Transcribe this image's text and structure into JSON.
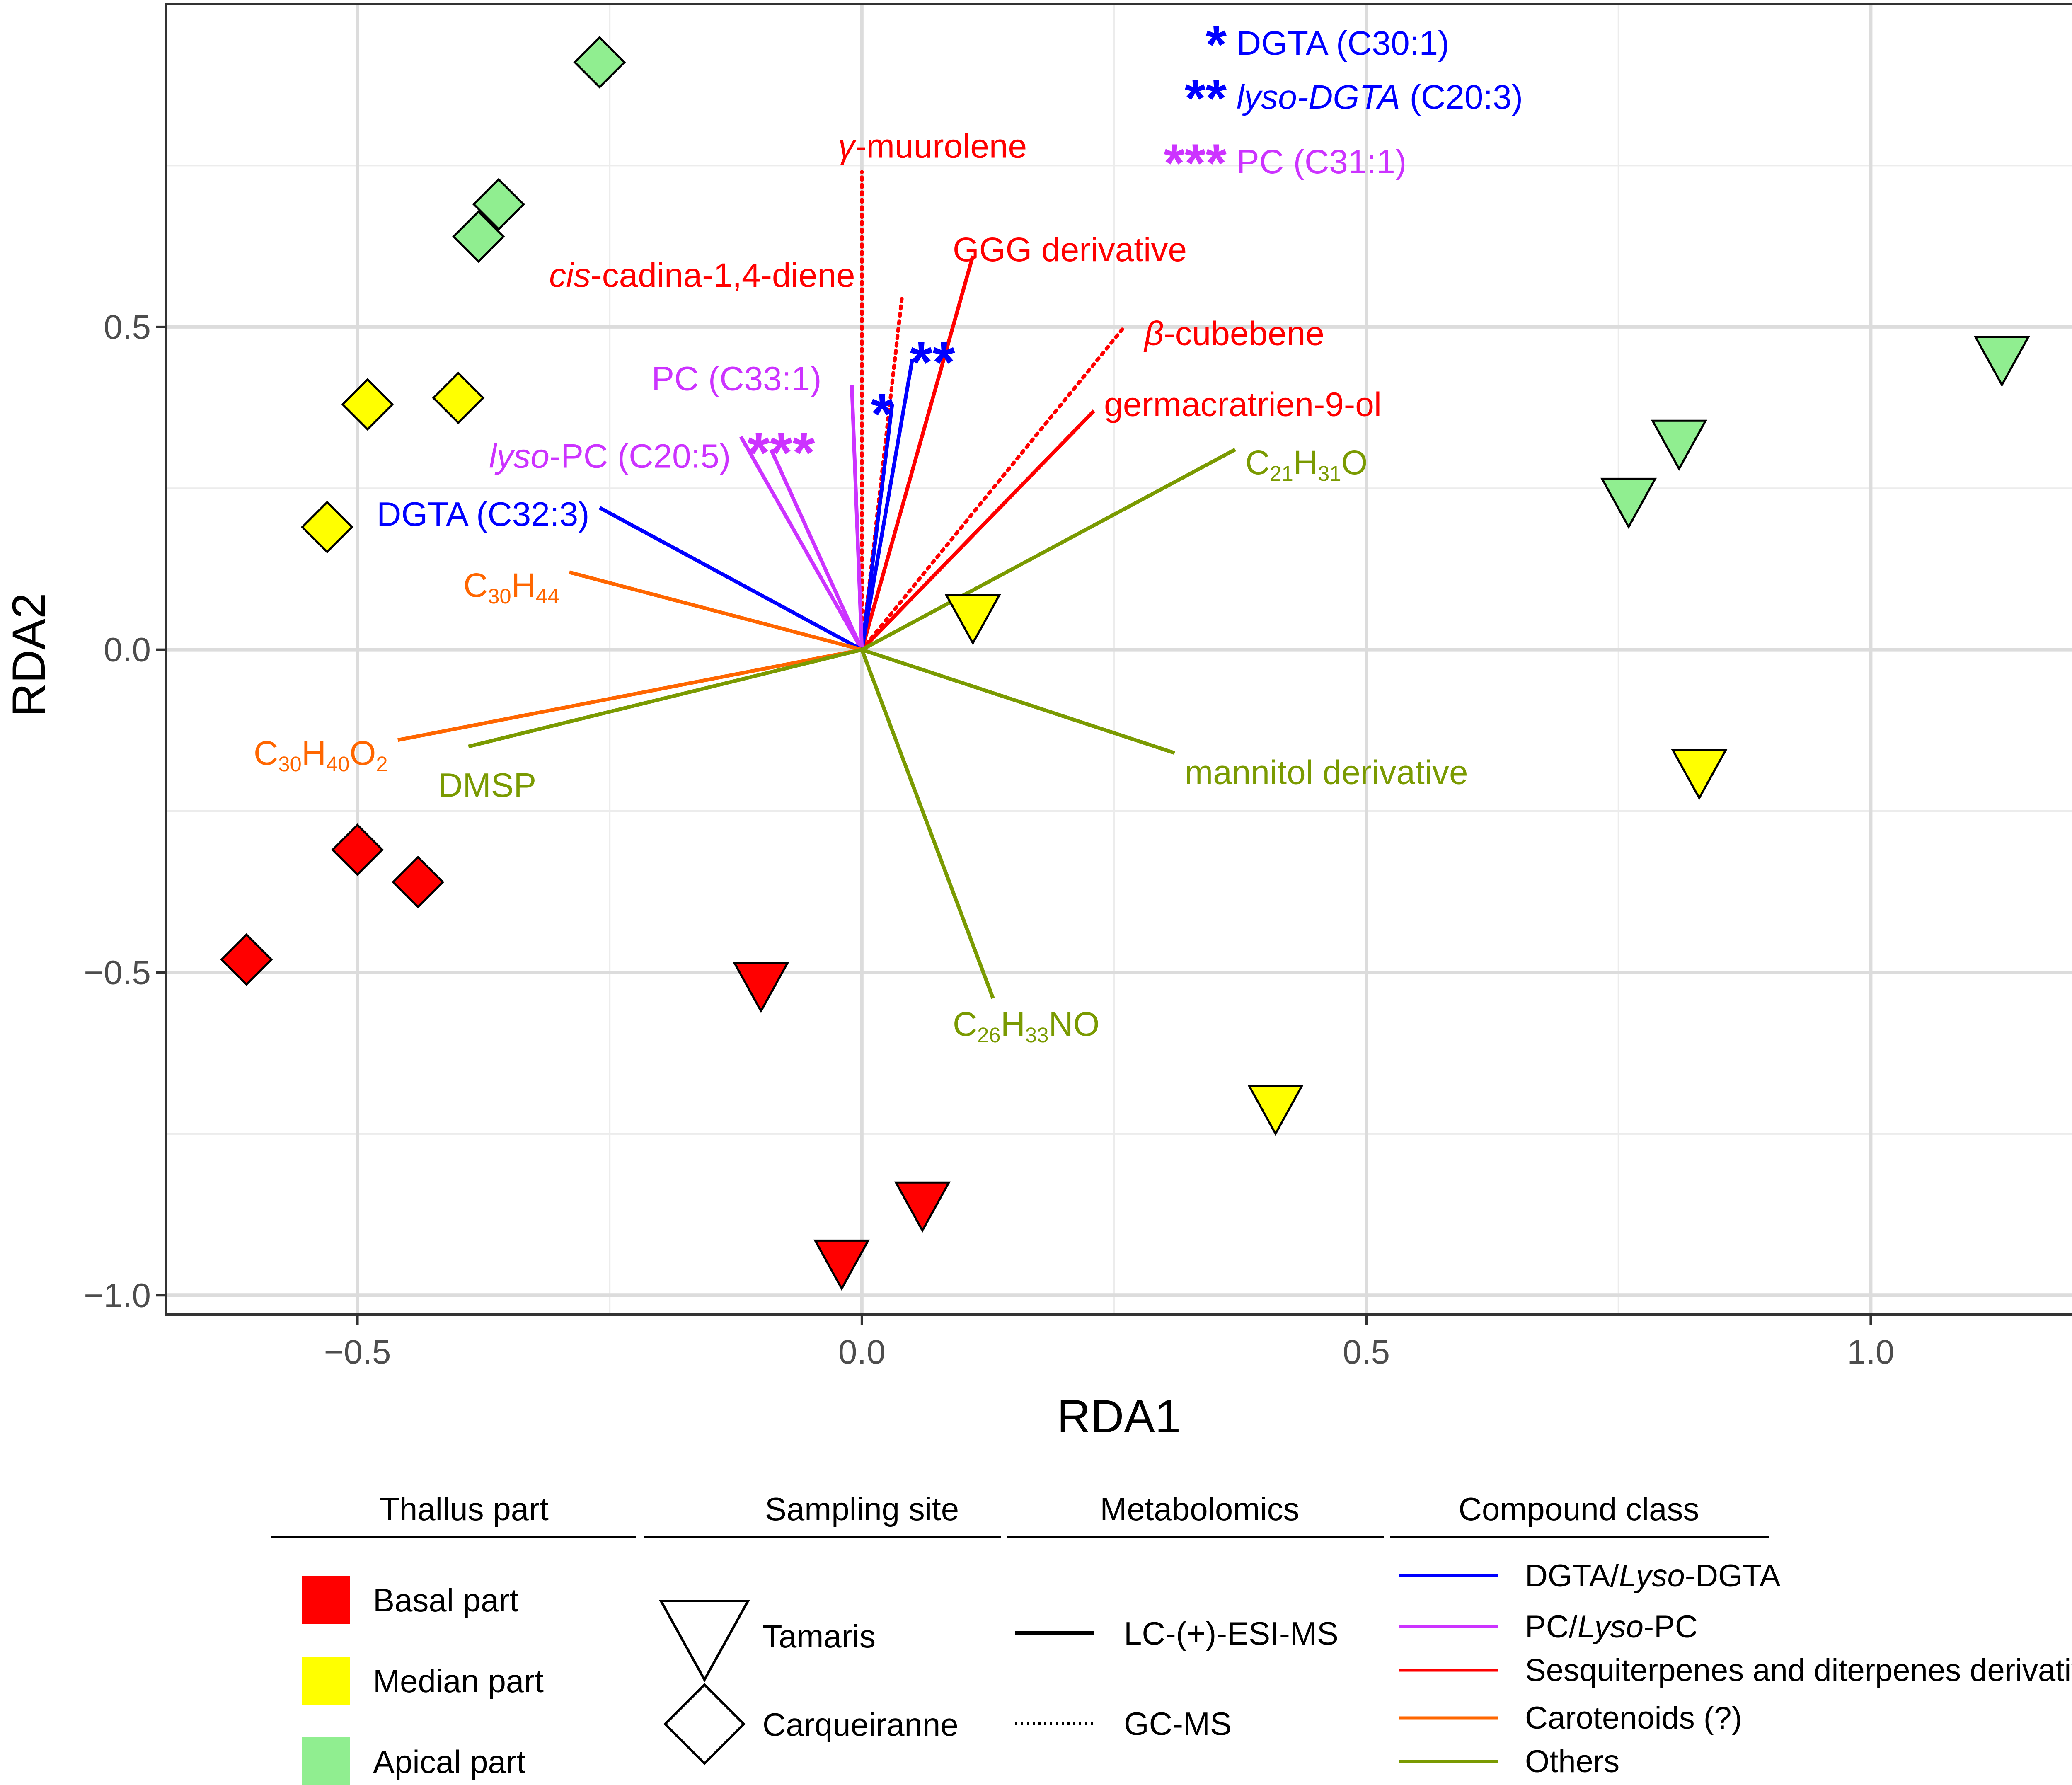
{
  "chart_data": {
    "type": "scatter",
    "subtype": "RDA biplot",
    "xlabel": "RDA1",
    "ylabel": "RDA2",
    "xlim": [
      -0.69,
      1.22
    ],
    "ylim": [
      -1.03,
      1.0
    ],
    "xticks": [
      -0.5,
      0.0,
      0.5,
      1.0
    ],
    "xtick_labels": [
      "−0.5",
      "0.0",
      "0.5",
      "1.0"
    ],
    "yticks": [
      -1.0,
      -0.5,
      0.0,
      0.5
    ],
    "ytick_labels": [
      "−1.0",
      "−0.5",
      "0.0",
      "0.5"
    ],
    "grid": true,
    "colors": {
      "basal": "#ff0000",
      "median": "#ffff00",
      "apical": "#90ee90",
      "dgta": "#0000ff",
      "pc": "#cc33ff",
      "terpene": "#ff0000",
      "carotenoid": "#ff6600",
      "others": "#7a9a01"
    },
    "points": [
      {
        "x": -0.26,
        "y": 0.91,
        "part": "apical",
        "site": "carqueiranne"
      },
      {
        "x": -0.36,
        "y": 0.69,
        "part": "apical",
        "site": "carqueiranne"
      },
      {
        "x": -0.38,
        "y": 0.64,
        "part": "apical",
        "site": "carqueiranne"
      },
      {
        "x": -0.49,
        "y": 0.38,
        "part": "median",
        "site": "carqueiranne"
      },
      {
        "x": -0.4,
        "y": 0.39,
        "part": "median",
        "site": "carqueiranne"
      },
      {
        "x": -0.53,
        "y": 0.19,
        "part": "median",
        "site": "carqueiranne"
      },
      {
        "x": -0.5,
        "y": -0.31,
        "part": "basal",
        "site": "carqueiranne"
      },
      {
        "x": -0.44,
        "y": -0.36,
        "part": "basal",
        "site": "carqueiranne"
      },
      {
        "x": -0.61,
        "y": -0.48,
        "part": "basal",
        "site": "carqueiranne"
      },
      {
        "x": 1.13,
        "y": 0.45,
        "part": "apical",
        "site": "tamaris"
      },
      {
        "x": 0.81,
        "y": 0.32,
        "part": "apical",
        "site": "tamaris"
      },
      {
        "x": 0.76,
        "y": 0.23,
        "part": "apical",
        "site": "tamaris"
      },
      {
        "x": 0.11,
        "y": 0.05,
        "part": "median",
        "site": "tamaris"
      },
      {
        "x": 0.83,
        "y": -0.19,
        "part": "median",
        "site": "tamaris"
      },
      {
        "x": 0.41,
        "y": -0.71,
        "part": "median",
        "site": "tamaris"
      },
      {
        "x": -0.1,
        "y": -0.52,
        "part": "basal",
        "site": "tamaris"
      },
      {
        "x": 0.06,
        "y": -0.86,
        "part": "basal",
        "site": "tamaris"
      },
      {
        "x": -0.02,
        "y": -0.95,
        "part": "basal",
        "site": "tamaris"
      }
    ],
    "vectors": [
      {
        "cls": "terpene",
        "method": "gc",
        "x": 0.0,
        "y": 0.74,
        "label": "γ-muurolene",
        "italic_prefix": "γ",
        "rest": "-muurolene",
        "lx": 0.07,
        "ly": 0.78,
        "anchor": "middle"
      },
      {
        "cls": "terpene",
        "method": "gc",
        "x": 0.04,
        "y": 0.55,
        "label": "cis-cadina-1,4-diene",
        "italic_prefix": "cis",
        "rest": "-cadina-1,4-diene",
        "lx": -0.31,
        "ly": 0.58,
        "anchor": "start"
      },
      {
        "cls": "terpene",
        "method": "lc",
        "x": 0.11,
        "y": 0.61,
        "label": "GGG derivative",
        "italic_prefix": "",
        "rest": "GGG derivative",
        "lx": 0.09,
        "ly": 0.62,
        "anchor": "start"
      },
      {
        "cls": "terpene",
        "method": "gc",
        "x": 0.26,
        "y": 0.5,
        "label": "β-cubebene",
        "italic_prefix": "β",
        "rest": "-cubebene",
        "lx": 0.28,
        "ly": 0.49,
        "anchor": "start"
      },
      {
        "cls": "terpene",
        "method": "lc",
        "x": 0.23,
        "y": 0.37,
        "label": "germacratrien-9-ol",
        "italic_prefix": "",
        "rest": "germacratrien-9-ol",
        "lx": 0.24,
        "ly": 0.38,
        "anchor": "start"
      },
      {
        "cls": "dgta",
        "method": "lc",
        "x": 0.05,
        "y": 0.45,
        "label": "",
        "stars": "**",
        "sx": 0.07,
        "sy": 0.44
      },
      {
        "cls": "dgta",
        "method": "lc",
        "x": 0.03,
        "y": 0.38,
        "label": "",
        "stars": "*",
        "sx": 0.02,
        "sy": 0.36
      },
      {
        "cls": "pc",
        "method": "lc",
        "x": -0.01,
        "y": 0.41,
        "label": "PC (C33:1)",
        "italic_prefix": "",
        "rest": "PC (C33:1)",
        "lx": -0.04,
        "ly": 0.42,
        "anchor": "end"
      },
      {
        "cls": "pc",
        "method": "lc",
        "x": -0.09,
        "y": 0.31,
        "label": "",
        "stars": "***",
        "sx": -0.08,
        "sy": 0.3
      },
      {
        "cls": "pc",
        "method": "lc",
        "x": -0.12,
        "y": 0.33,
        "label": "lyso-PC (C20:5)",
        "italic_prefix": "lyso",
        "rest": "-PC (C20:5)",
        "lx": -0.13,
        "ly": 0.3,
        "anchor": "end"
      },
      {
        "cls": "dgta",
        "method": "lc",
        "x": -0.26,
        "y": 0.22,
        "label": "DGTA (C32:3)",
        "italic_prefix": "",
        "rest": "DGTA (C32:3)",
        "lx": -0.27,
        "ly": 0.21,
        "anchor": "end"
      },
      {
        "cls": "carotenoid",
        "method": "lc",
        "x": -0.29,
        "y": 0.12,
        "label": "C30H44",
        "formula": [
          [
            "C",
            "30"
          ],
          [
            "H",
            "44"
          ]
        ],
        "lx": -0.3,
        "ly": 0.1,
        "anchor": "end"
      },
      {
        "cls": "carotenoid",
        "method": "lc",
        "x": -0.46,
        "y": -0.14,
        "label": "C30H40O2",
        "formula": [
          [
            "C",
            "30"
          ],
          [
            "H",
            "40"
          ],
          [
            "O",
            "2"
          ]
        ],
        "lx": -0.47,
        "ly": -0.16,
        "anchor": "end"
      },
      {
        "cls": "others",
        "method": "lc",
        "x": -0.39,
        "y": -0.15,
        "label": "DMSP",
        "italic_prefix": "",
        "rest": "DMSP",
        "lx": -0.42,
        "ly": -0.21,
        "anchor": "start"
      },
      {
        "cls": "others",
        "method": "lc",
        "x": 0.37,
        "y": 0.31,
        "label": "C21H31O",
        "formula": [
          [
            "C",
            "21"
          ],
          [
            "H",
            "31"
          ],
          [
            "O",
            ""
          ]
        ],
        "lx": 0.38,
        "ly": 0.29,
        "anchor": "start"
      },
      {
        "cls": "others",
        "method": "lc",
        "x": 0.31,
        "y": -0.16,
        "label": "mannitol derivative",
        "italic_prefix": "",
        "rest": "mannitol derivative",
        "lx": 0.32,
        "ly": -0.19,
        "anchor": "start"
      },
      {
        "cls": "others",
        "method": "lc",
        "x": 0.13,
        "y": -0.54,
        "label": "C26H33NO",
        "formula": [
          [
            "C",
            "26"
          ],
          [
            "H",
            "33"
          ],
          [
            "NO",
            ""
          ]
        ],
        "lx": 0.09,
        "ly": -0.58,
        "anchor": "start"
      }
    ],
    "star_legend": [
      {
        "stars": "*",
        "cls": "dgta",
        "label": "DGTA (C30:1)",
        "italic_prefix": "",
        "rest": "DGTA (C30:1)"
      },
      {
        "stars": "**",
        "cls": "dgta",
        "label": "lyso-DGTA (C20:3)",
        "italic_prefix": "lyso-DGTA",
        "rest": " (C20:3)"
      },
      {
        "stars": "***",
        "cls": "pc",
        "label": "PC (C31:1)",
        "italic_prefix": "",
        "rest": "PC (C31:1)"
      }
    ],
    "legend": {
      "thallus": {
        "title": "Thallus part",
        "items": [
          {
            "label": "Basal part",
            "key": "basal"
          },
          {
            "label": "Median part",
            "key": "median"
          },
          {
            "label": "Apical part",
            "key": "apical"
          }
        ]
      },
      "site": {
        "title": "Sampling site",
        "items": [
          {
            "label": "Tamaris",
            "shape": "triangle"
          },
          {
            "label": "Carqueiranne",
            "shape": "diamond"
          }
        ]
      },
      "metabolomics": {
        "title": "Metabolomics",
        "items": [
          {
            "label": "LC-(+)-ESI-MS",
            "style": "solid"
          },
          {
            "label": "GC-MS",
            "style": "dotted"
          }
        ]
      },
      "compound": {
        "title": "Compound class",
        "items": [
          {
            "label": "DGTA/Lyso-DGTA",
            "key": "dgta",
            "italic_part": "Lyso",
            "before": "DGTA/",
            "after": "-DGTA"
          },
          {
            "label": "PC/Lyso-PC",
            "key": "pc",
            "italic_part": "Lyso",
            "before": "PC/",
            "after": "-PC"
          },
          {
            "label": "Sesquiterpenes and diterpenes derivatives",
            "key": "terpene"
          },
          {
            "label": "Carotenoids (?)",
            "key": "carotenoid"
          },
          {
            "label": "Others",
            "key": "others"
          }
        ]
      }
    }
  }
}
